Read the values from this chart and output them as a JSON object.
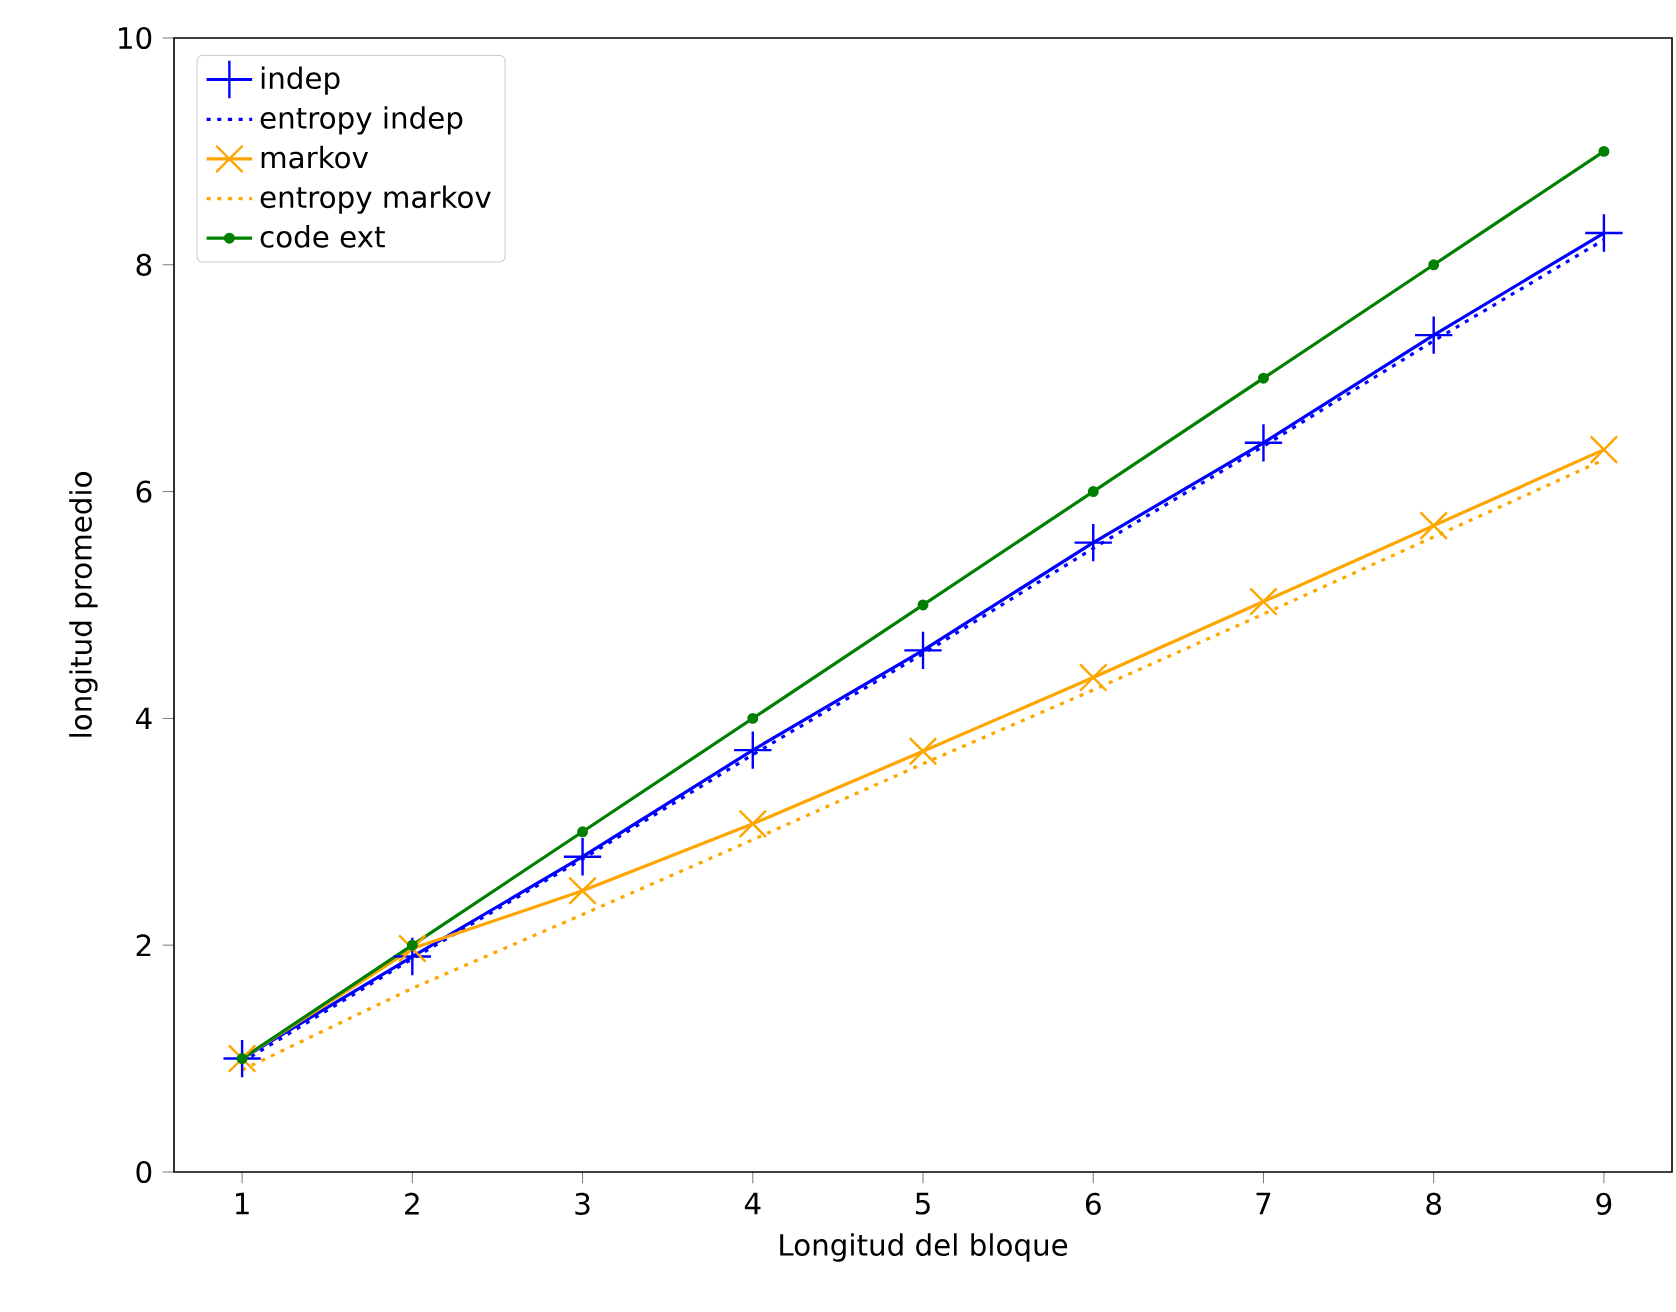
{
  "chart_data": {
    "type": "line",
    "xlabel": "Longitud del bloque",
    "ylabel": "longitud promedio",
    "x": [
      1,
      2,
      3,
      4,
      5,
      6,
      7,
      8,
      9
    ],
    "series": [
      {
        "name": "indep",
        "color": "#0000ff",
        "marker": "cross",
        "line_style": "solid",
        "values": [
          1.0,
          1.9,
          2.78,
          3.72,
          4.6,
          5.55,
          6.43,
          7.38,
          8.28
        ]
      },
      {
        "name": "entropy indep",
        "color": "#0000ff",
        "marker": "none",
        "line_style": "dotted",
        "values": [
          0.97,
          1.88,
          2.76,
          3.68,
          4.57,
          5.5,
          6.4,
          7.33,
          8.22
        ]
      },
      {
        "name": "markov",
        "color": "#ffa500",
        "marker": "x",
        "line_style": "solid",
        "values": [
          1.0,
          1.97,
          2.48,
          3.07,
          3.71,
          4.36,
          5.03,
          5.7,
          6.37
        ]
      },
      {
        "name": "entropy markov",
        "color": "#ffa500",
        "marker": "none",
        "line_style": "dotted",
        "values": [
          0.9,
          1.62,
          2.27,
          2.93,
          3.6,
          4.25,
          4.92,
          5.6,
          6.28
        ]
      },
      {
        "name": "code ext",
        "color": "#008000",
        "marker": "circle",
        "line_style": "solid",
        "values": [
          1,
          2,
          3,
          4,
          5,
          6,
          7,
          8,
          9
        ]
      }
    ],
    "xlim": [
      0.6,
      9.4
    ],
    "ylim": [
      0,
      10
    ],
    "xticks": [
      1,
      2,
      3,
      4,
      5,
      6,
      7,
      8,
      9
    ],
    "yticks": [
      0,
      2,
      4,
      6,
      8,
      10
    ],
    "legend": "top left",
    "grid": false
  }
}
